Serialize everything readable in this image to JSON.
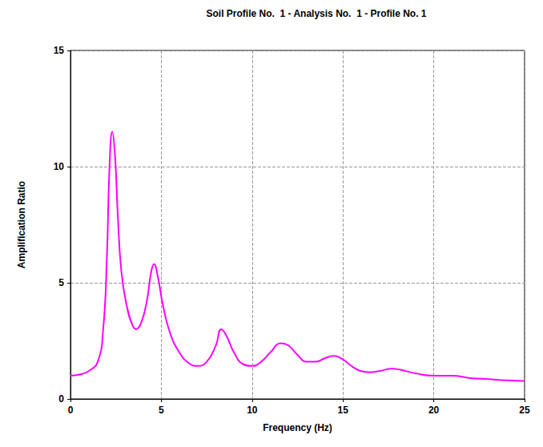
{
  "chart_data": {
    "type": "line",
    "title": "Soil Profile No.  1 - Analysis No.  1 - Profile No. 1",
    "x_label": "Frequency (Hz)",
    "y_label": "Amplification Ratio",
    "x": [
      0,
      0.5,
      1.0,
      1.5,
      1.8,
      2.0,
      2.15,
      2.3,
      2.45,
      2.6,
      2.8,
      3.1,
      3.4,
      3.6,
      3.9,
      4.2,
      4.45,
      4.6,
      4.8,
      5.1,
      5.5,
      6.0,
      6.5,
      7.0,
      7.5,
      8.0,
      8.3,
      8.6,
      9.0,
      9.5,
      10.0,
      10.5,
      11.0,
      11.6,
      12.0,
      12.5,
      13.0,
      13.5,
      14.0,
      14.5,
      15.0,
      15.5,
      16.0,
      16.5,
      17.0,
      17.7,
      18.2,
      19.0,
      20.0,
      21.0,
      22.0,
      23.0,
      24.0,
      25.0
    ],
    "values": [
      1.0,
      1.05,
      1.2,
      1.6,
      3.0,
      6.0,
      10.0,
      11.5,
      10.5,
      8.0,
      5.5,
      4.0,
      3.2,
      3.0,
      3.3,
      4.2,
      5.5,
      5.8,
      5.3,
      4.0,
      2.8,
      2.0,
      1.55,
      1.42,
      1.6,
      2.3,
      3.0,
      2.7,
      2.0,
      1.5,
      1.42,
      1.6,
      2.0,
      2.4,
      2.3,
      1.9,
      1.6,
      1.6,
      1.75,
      1.85,
      1.7,
      1.4,
      1.2,
      1.15,
      1.2,
      1.3,
      1.25,
      1.1,
      1.0,
      1.0,
      0.9,
      0.85,
      0.8,
      0.78
    ],
    "color": "#ff00ff",
    "xlim": [
      0,
      25
    ],
    "xticks": [
      0,
      5,
      10,
      15,
      20,
      25
    ],
    "ylim": [
      0,
      15
    ],
    "yticks": [
      0,
      5,
      10,
      15
    ],
    "grid": true
  }
}
